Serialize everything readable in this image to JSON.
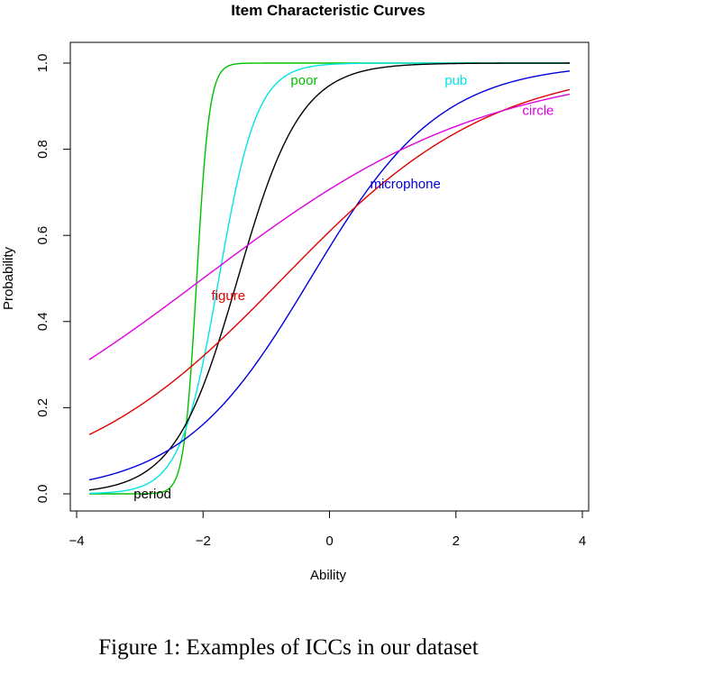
{
  "caption": "Figure 1: Examples of ICCs in our dataset",
  "chart_data": {
    "type": "line",
    "title": "Item Characteristic Curves",
    "xlabel": "Ability",
    "ylabel": "Probability",
    "xlim": [
      -4,
      4
    ],
    "ylim": [
      0,
      1
    ],
    "xticks": [
      -4,
      -2,
      0,
      2,
      4
    ],
    "yticks": [
      0.0,
      0.2,
      0.4,
      0.6,
      0.8,
      1.0
    ],
    "xtick_labels": [
      "−4",
      "−2",
      "0",
      "2",
      "4"
    ],
    "ytick_labels": [
      "0.0",
      "0.2",
      "0.4",
      "0.6",
      "0.8",
      "1.0"
    ],
    "grid": false,
    "legend": "none (curves labeled inline)",
    "x_range_plotted": [
      -3.8,
      3.8
    ],
    "series": [
      {
        "name": "poor",
        "color": "#00c000",
        "a": 10.0,
        "b": -2.1,
        "label_at": [
          -0.4,
          0.96
        ]
      },
      {
        "name": "pub",
        "color": "#00e5e5",
        "a": 3.3,
        "b": -1.75,
        "label_at": [
          2.0,
          0.96
        ]
      },
      {
        "name": "period",
        "color": "#000000",
        "a": 2.0,
        "b": -1.45,
        "label_at": [
          -2.8,
          0.0
        ]
      },
      {
        "name": "microphone",
        "color": "#0000dd",
        "a": 0.97,
        "b": -0.3,
        "label_at": [
          1.2,
          0.72
        ]
      },
      {
        "name": "figure",
        "color": "#e00000",
        "a": 0.6,
        "b": -0.74,
        "label_at": [
          -1.6,
          0.46
        ]
      },
      {
        "name": "circle",
        "color": "#e000e0",
        "a": 0.44,
        "b": -2.0,
        "label_at": [
          3.3,
          0.89
        ]
      }
    ]
  }
}
